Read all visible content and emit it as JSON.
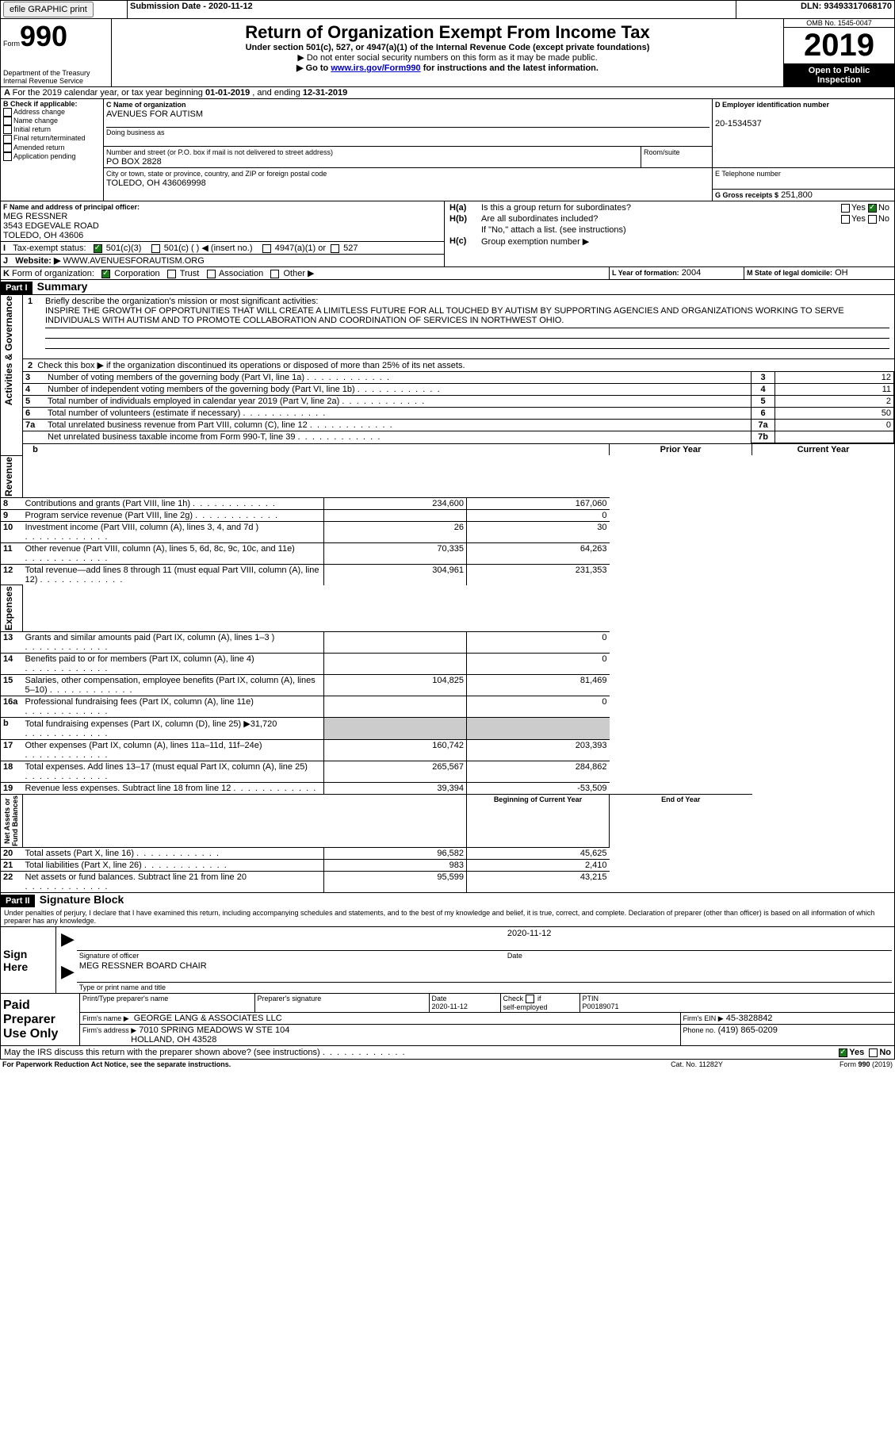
{
  "top_bar": {
    "efile_btn": "efile GRAPHIC print",
    "submission_label": "Submission Date - 2020-11-12",
    "dln_label": "DLN: 93493317068170"
  },
  "header": {
    "form_word": "Form",
    "form_no": "990",
    "title": "Return of Organization Exempt From Income Tax",
    "subtitle": "Under section 501(c), 527, or 4947(a)(1) of the Internal Revenue Code (except private foundations)",
    "note1": "▶ Do not enter social security numbers on this form as it may be made public.",
    "note2_pre": "▶ Go to ",
    "note2_link": "www.irs.gov/Form990",
    "note2_post": " for instructions and the latest information.",
    "dept": "Department of the Treasury\nInternal Revenue Service",
    "omb": "OMB No. 1545-0047",
    "year": "2019",
    "inspect1": "Open to Public",
    "inspect2": "Inspection"
  },
  "line_a": {
    "pre": "For the 2019 calendar year, or tax year beginning ",
    "begin": "01-01-2019",
    "mid": " , and ending ",
    "end": "12-31-2019"
  },
  "boxB": {
    "label": "B Check if applicable:",
    "opts": [
      "Address change",
      "Name change",
      "Initial return",
      "Final return/terminated",
      "Amended return",
      "Application pending"
    ]
  },
  "boxC": {
    "label": "C Name of organization",
    "value": "AVENUES FOR AUTISM",
    "dba": "Doing business as",
    "street_label": "Number and street (or P.O. box if mail is not delivered to street address)",
    "room_label": "Room/suite",
    "street": "PO BOX 2828",
    "city_label": "City or town, state or province, country, and ZIP or foreign postal code",
    "city": "TOLEDO, OH  436069998"
  },
  "boxD": {
    "label": "D Employer identification number",
    "value": "20-1534537"
  },
  "boxE": {
    "label": "E Telephone number"
  },
  "boxG": {
    "label": "G Gross receipts $",
    "value": "251,800"
  },
  "boxF": {
    "label": "F  Name and address of principal officer:",
    "name": "MEG RESSNER",
    "addr1": "3543 EDGEVALE ROAD",
    "addr2": "TOLEDO, OH  43606"
  },
  "boxH": {
    "a_label": "Is this a group return for subordinates?",
    "a_pre": "H(a)",
    "b_pre": "H(b)",
    "b_label": "Are all subordinates included?",
    "note": "If \"No,\" attach a list. (see instructions)",
    "c_pre": "H(c)",
    "c_label": "Group exemption number ▶",
    "yes": "Yes",
    "no": "No"
  },
  "boxI": {
    "label": "Tax-exempt status:",
    "o1": "501(c)(3)",
    "o2": "501(c) (   ) ◀ (insert no.)",
    "o3": "4947(a)(1) or",
    "o4": "527"
  },
  "boxJ": {
    "label": "Website: ▶",
    "value": "WWW.AVENUESFORAUTISM.ORG"
  },
  "boxK": {
    "label": "Form of organization:",
    "o1": "Corporation",
    "o2": "Trust",
    "o3": "Association",
    "o4": "Other ▶"
  },
  "boxL": {
    "label": "L Year of formation:",
    "value": "2004"
  },
  "boxM": {
    "label": "M State of legal domicile:",
    "value": "OH"
  },
  "part1": {
    "header": "Part I",
    "title": "Summary",
    "l1_label": "Briefly describe the organization's mission or most significant activities:",
    "l1_text": "INSPIRE THE GROWTH OF OPPORTUNITIES THAT WILL CREATE A LIMITLESS FUTURE FOR ALL TOUCHED BY AUTISM BY SUPPORTING AGENCIES AND ORGANIZATIONS WORKING TO SERVE INDIVIDUALS WITH AUTISM AND TO PROMOTE COLLABORATION AND COORDINATION OF SERVICES IN NORTHWEST OHIO.",
    "l2": "Check this box ▶        if the organization discontinued its operations or disposed of more than 25% of its net assets.",
    "rows_simple": [
      {
        "n": "3",
        "t": "Number of voting members of the governing body (Part VI, line 1a)",
        "box": "3",
        "v": "12"
      },
      {
        "n": "4",
        "t": "Number of independent voting members of the governing body (Part VI, line 1b)",
        "box": "4",
        "v": "11"
      },
      {
        "n": "5",
        "t": "Total number of individuals employed in calendar year 2019 (Part V, line 2a)",
        "box": "5",
        "v": "2"
      },
      {
        "n": "6",
        "t": "Total number of volunteers (estimate if necessary)",
        "box": "6",
        "v": "50"
      },
      {
        "n": "7a",
        "t": "Total unrelated business revenue from Part VIII, column (C), line 12",
        "box": "7a",
        "v": "0"
      },
      {
        "n": "",
        "t": "Net unrelated business taxable income from Form 990-T, line 39",
        "box": "7b",
        "v": ""
      }
    ],
    "col_prior": "Prior Year",
    "col_current": "Current Year",
    "col_begin": "Beginning of Current Year",
    "col_end": "End of Year",
    "section_ag": "Activities & Governance",
    "section_rev": "Revenue",
    "section_exp": "Expenses",
    "section_na": "Net Assets or\nFund Balances",
    "b": "b",
    "rows_rev": [
      {
        "n": "8",
        "t": "Contributions and grants (Part VIII, line 1h)",
        "p": "234,600",
        "c": "167,060"
      },
      {
        "n": "9",
        "t": "Program service revenue (Part VIII, line 2g)",
        "p": "",
        "c": "0"
      },
      {
        "n": "10",
        "t": "Investment income (Part VIII, column (A), lines 3, 4, and 7d )",
        "p": "26",
        "c": "30"
      },
      {
        "n": "11",
        "t": "Other revenue (Part VIII, column (A), lines 5, 6d, 8c, 9c, 10c, and 11e)",
        "p": "70,335",
        "c": "64,263"
      },
      {
        "n": "12",
        "t": "Total revenue—add lines 8 through 11 (must equal Part VIII, column (A), line 12)",
        "p": "304,961",
        "c": "231,353"
      }
    ],
    "rows_exp": [
      {
        "n": "13",
        "t": "Grants and similar amounts paid (Part IX, column (A), lines 1–3 )",
        "p": "",
        "c": "0"
      },
      {
        "n": "14",
        "t": "Benefits paid to or for members (Part IX, column (A), line 4)",
        "p": "",
        "c": "0"
      },
      {
        "n": "15",
        "t": "Salaries, other compensation, employee benefits (Part IX, column (A), lines 5–10)",
        "p": "104,825",
        "c": "81,469"
      },
      {
        "n": "16a",
        "t": "Professional fundraising fees (Part IX, column (A), line 11e)",
        "p": "",
        "c": "0"
      },
      {
        "n": "b",
        "t": "Total fundraising expenses (Part IX, column (D), line 25) ▶31,720",
        "p": "GREY",
        "c": "GREY"
      },
      {
        "n": "17",
        "t": "Other expenses (Part IX, column (A), lines 11a–11d, 11f–24e)",
        "p": "160,742",
        "c": "203,393"
      },
      {
        "n": "18",
        "t": "Total expenses. Add lines 13–17 (must equal Part IX, column (A), line 25)",
        "p": "265,567",
        "c": "284,862"
      },
      {
        "n": "19",
        "t": "Revenue less expenses. Subtract line 18 from line 12",
        "p": "39,394",
        "c": "-53,509"
      }
    ],
    "rows_na": [
      {
        "n": "20",
        "t": "Total assets (Part X, line 16)",
        "p": "96,582",
        "c": "45,625"
      },
      {
        "n": "21",
        "t": "Total liabilities (Part X, line 26)",
        "p": "983",
        "c": "2,410"
      },
      {
        "n": "22",
        "t": "Net assets or fund balances. Subtract line 21 from line 20",
        "p": "95,599",
        "c": "43,215"
      }
    ]
  },
  "part2": {
    "header": "Part II",
    "title": "Signature Block",
    "decl": "Under penalties of perjury, I declare that I have examined this return, including accompanying schedules and statements, and to the best of my knowledge and belief, it is true, correct, and complete. Declaration of preparer (other than officer) is based on all information of which preparer has any knowledge.",
    "sign_here": "Sign\nHere",
    "sig_officer": "Signature of officer",
    "sig_date": "2020-11-12",
    "date_label": "Date",
    "name_title": "MEG RESSNER  BOARD CHAIR",
    "name_title_label": "Type or print name and title",
    "paid": "Paid\nPreparer\nUse Only",
    "p_name_label": "Print/Type preparer's name",
    "p_sig_label": "Preparer's signature",
    "p_date_label": "Date",
    "p_date": "2020-11-12",
    "p_check_label1": "Check",
    "p_check_label2": "if",
    "p_check_label3": "self-employed",
    "ptin_label": "PTIN",
    "ptin": "P00189071",
    "firm_name_label": "Firm's name   ▶",
    "firm_name": "GEORGE LANG & ASSOCIATES LLC",
    "firm_ein_label": "Firm's EIN ▶",
    "firm_ein": "45-3828842",
    "firm_addr_label": "Firm's address ▶",
    "firm_addr1": "7010 SPRING MEADOWS W STE 104",
    "firm_addr2": "HOLLAND, OH  43528",
    "phone_label": "Phone no.",
    "phone": "(419) 865-0209",
    "discuss": "May the IRS discuss this return with the preparer shown above? (see instructions)",
    "yes": "Yes",
    "no": "No"
  },
  "footer": {
    "l": "For Paperwork Reduction Act Notice, see the separate instructions.",
    "c": "Cat. No. 11282Y",
    "r": "Form 990 (2019)"
  },
  "colors": {
    "link": "#0000cc",
    "check": "#1a7a1a"
  }
}
